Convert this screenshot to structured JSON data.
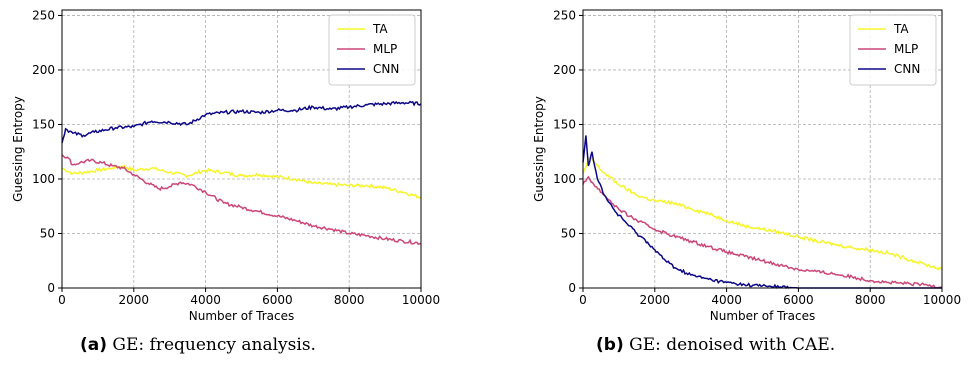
{
  "chart_data": [
    {
      "type": "line",
      "xlabel": "Number of Traces",
      "ylabel": "Guessing Entropy",
      "xlim": [
        0,
        10000
      ],
      "ylim": [
        0,
        255
      ],
      "xticks": [
        "0",
        "2000",
        "4000",
        "6000",
        "8000",
        "10000"
      ],
      "yticks": [
        "0",
        "50",
        "100",
        "150",
        "200",
        "250"
      ],
      "grid": true,
      "legend_position": "top-right",
      "series": [
        {
          "name": "TA",
          "color": "#f5f52a",
          "x": [
            0,
            300,
            600,
            1000,
            1400,
            1700,
            2000,
            2500,
            3000,
            3500,
            4000,
            4500,
            5000,
            5500,
            6000,
            6500,
            7000,
            7500,
            8000,
            8500,
            9000,
            9500,
            10000
          ],
          "y": [
            110,
            105,
            106,
            108,
            110,
            112,
            108,
            110,
            106,
            103,
            108,
            106,
            103,
            104,
            102,
            100,
            96,
            95,
            94,
            94,
            92,
            88,
            83
          ]
        },
        {
          "name": "MLP",
          "color": "#cc4778",
          "x": [
            0,
            150,
            300,
            500,
            800,
            1100,
            1400,
            1700,
            2000,
            2400,
            2700,
            3000,
            3300,
            3600,
            4000,
            4500,
            5000,
            5500,
            6000,
            6500,
            7000,
            7500,
            8000,
            8500,
            9000,
            9500,
            10000
          ],
          "y": [
            122,
            120,
            113,
            115,
            117,
            115,
            112,
            110,
            104,
            96,
            91,
            93,
            97,
            95,
            88,
            78,
            74,
            70,
            66,
            62,
            57,
            54,
            50,
            48,
            45,
            43,
            41
          ]
        },
        {
          "name": "CNN",
          "color": "#0d0887",
          "x": [
            0,
            100,
            300,
            600,
            900,
            1200,
            1500,
            2000,
            2500,
            3000,
            3500,
            4000,
            4500,
            5000,
            5500,
            6000,
            6500,
            7000,
            7500,
            8000,
            8500,
            9000,
            9500,
            10000
          ],
          "y": [
            133,
            146,
            142,
            140,
            143,
            145,
            147,
            148,
            153,
            152,
            150,
            159,
            161,
            162,
            161,
            163,
            163,
            166,
            164,
            166,
            168,
            169,
            170,
            169
          ]
        }
      ]
    },
    {
      "type": "line",
      "xlabel": "Number of Traces",
      "ylabel": "Guessing Entropy",
      "xlim": [
        0,
        10000
      ],
      "ylim": [
        0,
        255
      ],
      "xticks": [
        "0",
        "2000",
        "4000",
        "6000",
        "8000",
        "10000"
      ],
      "yticks": [
        "0",
        "50",
        "100",
        "150",
        "200",
        "250"
      ],
      "grid": true,
      "legend_position": "top-right",
      "series": [
        {
          "name": "TA",
          "color": "#f5f52a",
          "x": [
            0,
            200,
            500,
            1000,
            1500,
            2000,
            2500,
            3000,
            3500,
            4000,
            4500,
            5000,
            5500,
            6000,
            6500,
            7000,
            7500,
            8000,
            8500,
            9000,
            9500,
            10000
          ],
          "y": [
            105,
            120,
            108,
            95,
            85,
            80,
            78,
            73,
            68,
            62,
            57,
            54,
            51,
            47,
            43,
            40,
            37,
            35,
            32,
            27,
            22,
            17
          ]
        },
        {
          "name": "MLP",
          "color": "#cc4778",
          "x": [
            0,
            150,
            300,
            600,
            1000,
            1500,
            2000,
            2500,
            3000,
            3500,
            4000,
            4500,
            5000,
            5500,
            6000,
            6500,
            7000,
            7500,
            8000,
            8500,
            9000,
            9500,
            10000
          ],
          "y": [
            95,
            102,
            95,
            85,
            72,
            62,
            54,
            48,
            43,
            38,
            33,
            29,
            25,
            21,
            17,
            15,
            13,
            10,
            7,
            5,
            4,
            3,
            1
          ]
        },
        {
          "name": "CNN",
          "color": "#0d0887",
          "x": [
            0,
            80,
            150,
            250,
            400,
            600,
            900,
            1200,
            1500,
            1800,
            2000,
            2300,
            2600,
            3000,
            3500,
            4000,
            4500,
            5000,
            5500,
            6000,
            7000,
            8000,
            9000,
            10000
          ],
          "y": [
            115,
            140,
            112,
            125,
            100,
            85,
            70,
            60,
            50,
            42,
            35,
            25,
            18,
            12,
            8,
            5,
            3,
            2,
            1,
            0,
            0,
            0,
            0,
            0
          ]
        }
      ]
    }
  ],
  "captions": [
    {
      "label": "(a)",
      "text": "GE: frequency analysis."
    },
    {
      "label": "(b)",
      "text": "GE: denoised with CAE."
    }
  ]
}
